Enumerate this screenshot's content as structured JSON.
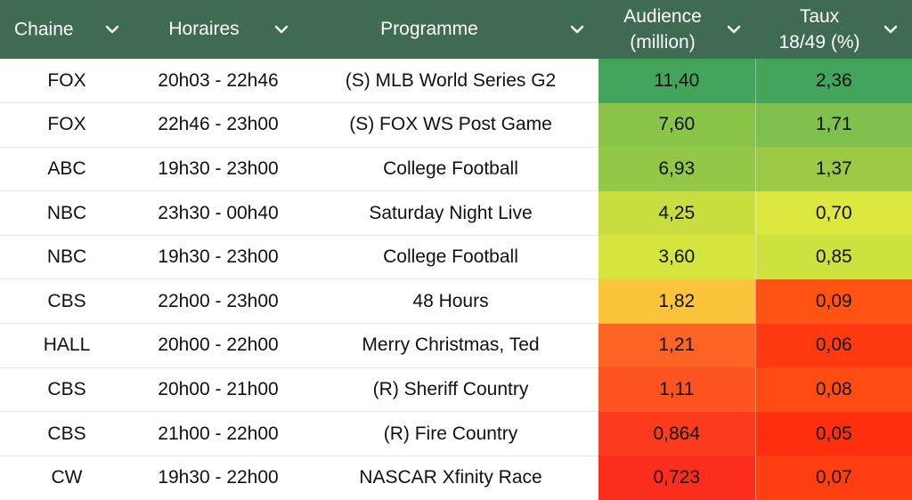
{
  "headers": {
    "chaine": "Chaine",
    "horaires": "Horaires",
    "programme": "Programme",
    "audience_line1": "Audience",
    "audience_line2": "(million)",
    "taux_line1": "Taux",
    "taux_line2": "18/49 (%)",
    "sort_icon": "chevron-down-icon",
    "header_bg": "#3e6b52"
  },
  "rows": [
    {
      "chaine": "FOX",
      "horaires": "20h03 - 22h46",
      "programme": "(S) MLB World Series G2",
      "audience": "11,40",
      "taux": "2,36",
      "audience_color": "#43a55b",
      "taux_color": "#43a55b"
    },
    {
      "chaine": "FOX",
      "horaires": "22h46 - 23h00",
      "programme": "(S) FOX WS Post Game",
      "audience": "7,60",
      "taux": "1,71",
      "audience_color": "#8ac449",
      "taux_color": "#7fc14c"
    },
    {
      "chaine": "ABC",
      "horaires": "19h30 - 23h00",
      "programme": "College Football",
      "audience": "6,93",
      "taux": "1,37",
      "audience_color": "#93c847",
      "taux_color": "#9cca44"
    },
    {
      "chaine": "NBC",
      "horaires": "23h30 - 00h40",
      "programme": "Saturday Night Live",
      "audience": "4,25",
      "taux": "0,70",
      "audience_color": "#c8de3e",
      "taux_color": "#dde83e"
    },
    {
      "chaine": "NBC",
      "horaires": "19h30 - 23h00",
      "programme": "College Football",
      "audience": "3,60",
      "taux": "0,85",
      "audience_color": "#d6e43e",
      "taux_color": "#cde13f"
    },
    {
      "chaine": "CBS",
      "horaires": "22h00 - 23h00",
      "programme": "48 Hours",
      "audience": "1,82",
      "taux": "0,09",
      "audience_color": "#fbc43a",
      "taux_color": "#ff5314"
    },
    {
      "chaine": "HALL",
      "horaires": "20h00 - 22h00",
      "programme": "Merry Christmas, Ted",
      "audience": "1,21",
      "taux": "0,06",
      "audience_color": "#fd6424",
      "taux_color": "#ff3a10"
    },
    {
      "chaine": "CBS",
      "horaires": "20h00 - 21h00",
      "programme": "(R) Sheriff Country",
      "audience": "1,11",
      "taux": "0,08",
      "audience_color": "#fd5321",
      "taux_color": "#ff4c12"
    },
    {
      "chaine": "CBS",
      "horaires": "21h00 - 22h00",
      "programme": "(R) Fire Country",
      "audience": "0,864",
      "taux": "0,05",
      "audience_color": "#fb3b1c",
      "taux_color": "#ff2e0e"
    },
    {
      "chaine": "CW",
      "horaires": "19h30 - 22h00",
      "programme": "NASCAR Xfinity Race",
      "audience": "0,723",
      "taux": "0,07",
      "audience_color": "#fa2e1a",
      "taux_color": "#ff3f11"
    }
  ]
}
